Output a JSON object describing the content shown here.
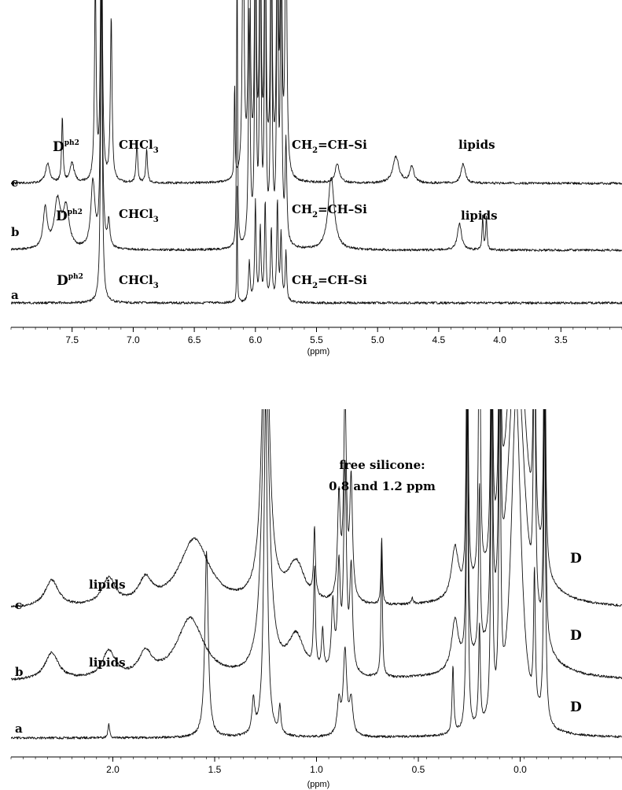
{
  "chart_data": [
    {
      "type": "line",
      "panel": "top",
      "xlabel": "(ppm)",
      "x_range": [
        8.0,
        3.0
      ],
      "x_ticks": [
        7.5,
        7.0,
        6.5,
        6.0,
        5.5,
        5.0,
        4.5,
        4.0,
        3.5
      ],
      "x_tick_labels": [
        "7.5",
        "7.0",
        "6.5",
        "6.0",
        "5.5",
        "5.0",
        "4.5",
        "4.0",
        "3.5"
      ],
      "grid": false,
      "series": [
        {
          "name": "a",
          "peaks": [
            [
              7.26,
              1.0,
              0.008
            ],
            [
              6.15,
              0.35,
              0.003
            ],
            [
              6.05,
              0.12,
              0.008
            ],
            [
              6.0,
              0.3,
              0.007
            ],
            [
              5.96,
              0.22,
              0.007
            ],
            [
              5.92,
              0.3,
              0.007
            ],
            [
              5.87,
              0.22,
              0.007
            ],
            [
              5.82,
              0.3,
              0.007
            ],
            [
              5.79,
              0.2,
              0.007
            ],
            [
              5.75,
              0.15,
              0.007
            ]
          ]
        },
        {
          "name": "b",
          "peaks": [
            [
              7.72,
              0.12,
              0.02
            ],
            [
              7.62,
              0.14,
              0.03
            ],
            [
              7.55,
              0.12,
              0.03
            ],
            [
              7.33,
              0.2,
              0.02
            ],
            [
              7.26,
              1.0,
              0.008
            ],
            [
              7.2,
              0.08,
              0.01
            ],
            [
              6.15,
              1.0,
              0.004
            ],
            [
              6.05,
              0.7,
              0.008
            ],
            [
              6.0,
              1.0,
              0.007
            ],
            [
              5.96,
              1.0,
              0.007
            ],
            [
              5.92,
              1.0,
              0.007
            ],
            [
              5.87,
              1.0,
              0.007
            ],
            [
              5.82,
              1.0,
              0.007
            ],
            [
              5.79,
              0.9,
              0.007
            ],
            [
              5.75,
              0.3,
              0.008
            ],
            [
              5.38,
              0.22,
              0.03
            ],
            [
              4.33,
              0.08,
              0.02
            ],
            [
              4.14,
              0.1,
              0.006
            ],
            [
              4.11,
              0.1,
              0.006
            ]
          ]
        },
        {
          "name": "c",
          "peaks": [
            [
              7.7,
              0.06,
              0.02
            ],
            [
              7.58,
              0.2,
              0.007
            ],
            [
              7.5,
              0.06,
              0.02
            ],
            [
              7.31,
              0.6,
              0.008
            ],
            [
              7.26,
              1.0,
              0.008
            ],
            [
              7.18,
              0.5,
              0.008
            ],
            [
              6.97,
              0.12,
              0.008
            ],
            [
              6.89,
              0.1,
              0.008
            ],
            [
              6.17,
              0.3,
              0.004
            ],
            [
              6.1,
              0.9,
              0.008
            ],
            [
              6.05,
              1.0,
              0.008
            ],
            [
              6.0,
              1.0,
              0.007
            ],
            [
              5.96,
              1.0,
              0.007
            ],
            [
              5.92,
              1.0,
              0.007
            ],
            [
              5.87,
              1.0,
              0.007
            ],
            [
              5.82,
              1.0,
              0.007
            ],
            [
              5.79,
              1.0,
              0.007
            ],
            [
              5.75,
              0.9,
              0.008
            ],
            [
              5.33,
              0.06,
              0.02
            ],
            [
              4.85,
              0.08,
              0.03
            ],
            [
              4.72,
              0.05,
              0.02
            ],
            [
              4.3,
              0.06,
              0.02
            ]
          ]
        }
      ],
      "trace_labels": [
        "a",
        "b",
        "c"
      ],
      "annotations": {
        "dph2": "D",
        "dph2_sup": "ph2",
        "chcl3": "CHCl",
        "chcl3_sub": "3",
        "vinyl_pre": "CH",
        "vinyl_sub": "2",
        "vinyl_post": "=CH–Si",
        "lipids": "lipids"
      }
    },
    {
      "type": "line",
      "panel": "bottom",
      "xlabel": "(ppm)",
      "x_range": [
        2.5,
        -0.5
      ],
      "x_ticks": [
        2.0,
        1.5,
        1.0,
        0.5,
        0.0
      ],
      "x_tick_labels": [
        "2.0",
        "1.5",
        "1.0",
        "0.5",
        "0.0"
      ],
      "grid": false,
      "series": [
        {
          "name": "a",
          "peaks": [
            [
              2.02,
              0.04,
              0.005
            ],
            [
              1.54,
              0.55,
              0.01
            ],
            [
              1.31,
              0.1,
              0.008
            ],
            [
              1.25,
              1.0,
              0.01
            ],
            [
              1.18,
              0.08,
              0.006
            ],
            [
              0.89,
              0.1,
              0.01
            ],
            [
              0.86,
              0.25,
              0.01
            ],
            [
              0.83,
              0.1,
              0.01
            ],
            [
              0.33,
              0.2,
              0.005
            ],
            [
              0.26,
              1.0,
              0.005
            ],
            [
              0.2,
              0.3,
              0.005
            ],
            [
              0.14,
              1.0,
              0.005
            ],
            [
              0.1,
              1.0,
              0.005
            ],
            [
              0.02,
              1.0,
              0.03
            ],
            [
              -0.07,
              0.4,
              0.005
            ],
            [
              -0.12,
              1.0,
              0.005
            ]
          ]
        },
        {
          "name": "b",
          "peaks": [
            [
              2.3,
              0.08,
              0.04
            ],
            [
              2.02,
              0.08,
              0.04
            ],
            [
              1.84,
              0.07,
              0.04
            ],
            [
              1.62,
              0.18,
              0.08
            ],
            [
              1.25,
              1.0,
              0.02
            ],
            [
              1.1,
              0.12,
              0.05
            ],
            [
              1.01,
              0.3,
              0.005
            ],
            [
              0.97,
              0.12,
              0.006
            ],
            [
              0.92,
              0.2,
              0.008
            ],
            [
              0.89,
              0.3,
              0.008
            ],
            [
              0.86,
              0.6,
              0.008
            ],
            [
              0.83,
              0.3,
              0.008
            ],
            [
              0.68,
              0.4,
              0.004
            ],
            [
              0.32,
              0.15,
              0.02
            ],
            [
              0.26,
              1.0,
              0.005
            ],
            [
              0.2,
              0.5,
              0.005
            ],
            [
              0.14,
              1.0,
              0.005
            ],
            [
              0.1,
              1.0,
              0.005
            ],
            [
              0.02,
              1.0,
              0.05
            ],
            [
              -0.07,
              1.0,
              0.005
            ],
            [
              -0.12,
              1.0,
              0.005
            ]
          ]
        },
        {
          "name": "c",
          "peaks": [
            [
              2.3,
              0.08,
              0.04
            ],
            [
              2.02,
              0.08,
              0.04
            ],
            [
              1.84,
              0.07,
              0.04
            ],
            [
              1.6,
              0.2,
              0.09
            ],
            [
              1.25,
              1.0,
              0.02
            ],
            [
              1.1,
              0.12,
              0.05
            ],
            [
              1.01,
              0.2,
              0.005
            ],
            [
              0.89,
              0.3,
              0.008
            ],
            [
              0.86,
              0.6,
              0.008
            ],
            [
              0.83,
              0.35,
              0.008
            ],
            [
              0.68,
              0.2,
              0.004
            ],
            [
              0.53,
              0.02,
              0.005
            ],
            [
              0.32,
              0.15,
              0.02
            ],
            [
              0.26,
              1.0,
              0.005
            ],
            [
              0.2,
              1.0,
              0.005
            ],
            [
              0.14,
              1.0,
              0.005
            ],
            [
              0.1,
              1.0,
              0.005
            ],
            [
              0.02,
              1.0,
              0.05
            ],
            [
              -0.07,
              1.0,
              0.005
            ],
            [
              -0.12,
              1.0,
              0.005
            ]
          ]
        }
      ],
      "trace_labels": [
        "a",
        "b",
        "c"
      ],
      "annotations": {
        "free_silicone_1": "free silicone:",
        "free_silicone_2": "0.8 and 1.2 ppm",
        "lipids": "lipids",
        "d": "D"
      }
    }
  ]
}
